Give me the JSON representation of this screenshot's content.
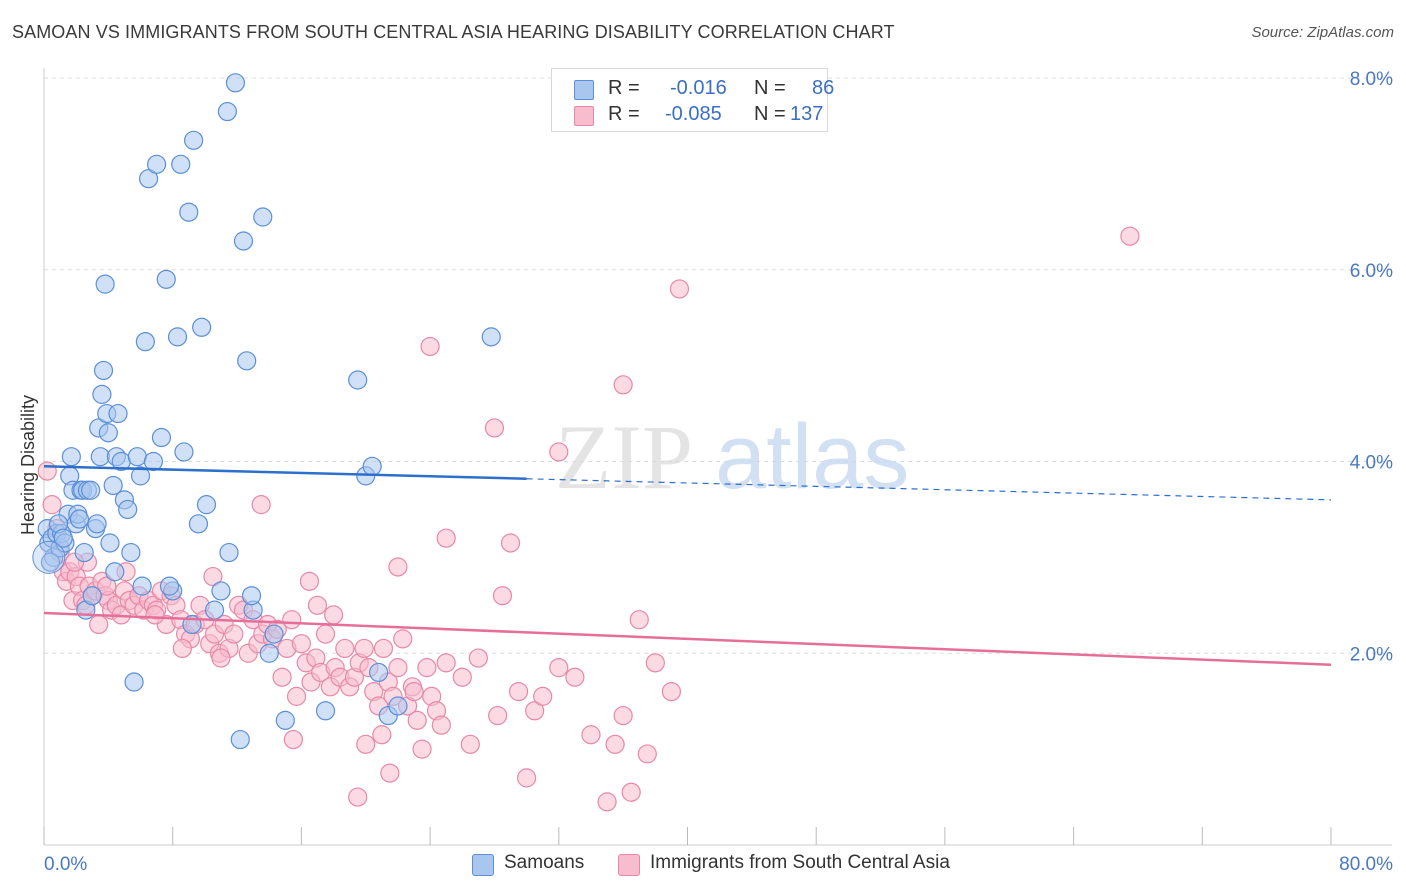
{
  "header": {
    "title": "SAMOAN VS IMMIGRANTS FROM SOUTH CENTRAL ASIA HEARING DISABILITY CORRELATION CHART",
    "source": "Source: ZipAtlas.com"
  },
  "watermark": {
    "zip": "ZIP",
    "atlas": "atlas"
  },
  "stats_legend": {
    "rows": [
      {
        "r_label": "R =",
        "r_value": "-0.016",
        "n_label": "N =",
        "n_value": "86"
      },
      {
        "r_label": "R =",
        "r_value": "-0.085",
        "n_label": "N =",
        "n_value": "137"
      }
    ]
  },
  "bottom_legend": {
    "items": [
      {
        "label": "Samoans"
      },
      {
        "label": "Immigrants from South Central Asia"
      }
    ]
  },
  "colors": {
    "samoans_fill": "#a9c6ef",
    "samoans_stroke": "#5b8fd8",
    "samoans_line": "#2d6fcc",
    "immigrants_fill": "#f7bccd",
    "immigrants_stroke": "#e888a8",
    "immigrants_line": "#e56f99",
    "axis_text": "#4a78c2",
    "grid": "#dddddd"
  },
  "chart_data": {
    "type": "scatter",
    "title": "SAMOAN VS IMMIGRANTS FROM SOUTH CENTRAL ASIA HEARING DISABILITY CORRELATION CHART",
    "xlabel": "",
    "ylabel": "Hearing Disability",
    "xlim": [
      0,
      80
    ],
    "ylim": [
      0,
      8
    ],
    "x_tick_labels": [
      "0.0%",
      "80.0%"
    ],
    "y_tick_labels": [
      "2.0%",
      "4.0%",
      "6.0%",
      "8.0%"
    ],
    "y_ticks": [
      2,
      4,
      6,
      8
    ],
    "grid": true,
    "legend_position": "bottom",
    "series": [
      {
        "name": "Samoans",
        "r": -0.016,
        "n": 86,
        "trend": {
          "x": [
            0,
            30
          ],
          "y": [
            3.95,
            3.82
          ],
          "dashed_to": [
            80,
            3.6
          ]
        },
        "points": [
          [
            0.2,
            3.3
          ],
          [
            0.3,
            3.15
          ],
          [
            0.5,
            3.2
          ],
          [
            0.6,
            3.0
          ],
          [
            0.8,
            3.25
          ],
          [
            1.0,
            3.1
          ],
          [
            1.1,
            3.25
          ],
          [
            1.3,
            3.15
          ],
          [
            1.5,
            3.45
          ],
          [
            1.6,
            3.85
          ],
          [
            1.7,
            4.05
          ],
          [
            1.8,
            3.7
          ],
          [
            2.0,
            3.35
          ],
          [
            2.1,
            3.45
          ],
          [
            2.3,
            3.7
          ],
          [
            2.4,
            3.7
          ],
          [
            2.5,
            3.05
          ],
          [
            2.6,
            2.45
          ],
          [
            2.7,
            3.7
          ],
          [
            2.9,
            3.7
          ],
          [
            3.0,
            2.6
          ],
          [
            3.2,
            3.3
          ],
          [
            3.3,
            3.35
          ],
          [
            3.4,
            4.35
          ],
          [
            3.5,
            4.05
          ],
          [
            3.6,
            4.7
          ],
          [
            3.7,
            4.95
          ],
          [
            3.8,
            5.85
          ],
          [
            3.9,
            4.5
          ],
          [
            4.0,
            4.3
          ],
          [
            4.1,
            3.15
          ],
          [
            4.3,
            3.75
          ],
          [
            4.5,
            4.05
          ],
          [
            4.6,
            4.5
          ],
          [
            4.8,
            4.0
          ],
          [
            5.0,
            3.6
          ],
          [
            5.2,
            3.5
          ],
          [
            5.4,
            3.05
          ],
          [
            5.6,
            1.7
          ],
          [
            5.8,
            4.05
          ],
          [
            6.0,
            3.85
          ],
          [
            6.3,
            5.25
          ],
          [
            6.5,
            6.95
          ],
          [
            6.8,
            4.0
          ],
          [
            7.0,
            7.1
          ],
          [
            7.3,
            4.25
          ],
          [
            7.6,
            5.9
          ],
          [
            8.0,
            2.65
          ],
          [
            8.3,
            5.3
          ],
          [
            8.5,
            7.1
          ],
          [
            8.7,
            4.1
          ],
          [
            9.0,
            6.6
          ],
          [
            9.3,
            7.35
          ],
          [
            9.6,
            3.35
          ],
          [
            9.8,
            5.4
          ],
          [
            10.1,
            3.55
          ],
          [
            10.6,
            2.45
          ],
          [
            11.0,
            2.65
          ],
          [
            11.4,
            7.65
          ],
          [
            11.9,
            7.95
          ],
          [
            11.5,
            3.05
          ],
          [
            12.2,
            1.1
          ],
          [
            12.4,
            6.3
          ],
          [
            12.6,
            5.05
          ],
          [
            13.0,
            2.45
          ],
          [
            13.6,
            6.55
          ],
          [
            14.0,
            2.0
          ],
          [
            14.3,
            2.2
          ],
          [
            15.0,
            1.3
          ],
          [
            17.5,
            1.4
          ],
          [
            19.5,
            4.85
          ],
          [
            20.0,
            3.85
          ],
          [
            20.4,
            3.95
          ],
          [
            20.8,
            1.8
          ],
          [
            21.4,
            1.35
          ],
          [
            22.0,
            1.45
          ],
          [
            27.8,
            5.3
          ],
          [
            0.4,
            2.95
          ],
          [
            0.9,
            3.35
          ],
          [
            1.2,
            3.2
          ],
          [
            2.2,
            3.4
          ],
          [
            4.4,
            2.85
          ],
          [
            6.1,
            2.7
          ],
          [
            7.8,
            2.7
          ],
          [
            9.2,
            2.3
          ],
          [
            12.9,
            2.6
          ]
        ]
      },
      {
        "name": "Immigrants from South Central Asia",
        "r": -0.085,
        "n": 137,
        "trend": {
          "x": [
            0,
            80
          ],
          "y": [
            2.42,
            1.88
          ]
        },
        "points": [
          [
            0.2,
            3.9
          ],
          [
            0.5,
            3.55
          ],
          [
            0.8,
            3.3
          ],
          [
            1.0,
            3.05
          ],
          [
            1.2,
            2.85
          ],
          [
            1.4,
            2.75
          ],
          [
            1.6,
            2.85
          ],
          [
            1.8,
            2.55
          ],
          [
            2.0,
            2.8
          ],
          [
            2.2,
            2.7
          ],
          [
            2.4,
            2.55
          ],
          [
            2.6,
            2.5
          ],
          [
            2.8,
            2.7
          ],
          [
            3.0,
            2.6
          ],
          [
            3.2,
            2.65
          ],
          [
            3.4,
            2.3
          ],
          [
            3.6,
            2.75
          ],
          [
            3.8,
            2.6
          ],
          [
            4.0,
            2.55
          ],
          [
            4.2,
            2.45
          ],
          [
            4.5,
            2.5
          ],
          [
            4.8,
            2.4
          ],
          [
            5.0,
            2.65
          ],
          [
            5.3,
            2.55
          ],
          [
            5.6,
            2.5
          ],
          [
            5.9,
            2.6
          ],
          [
            6.2,
            2.45
          ],
          [
            6.5,
            2.55
          ],
          [
            6.8,
            2.5
          ],
          [
            7.0,
            2.45
          ],
          [
            7.3,
            2.65
          ],
          [
            7.6,
            2.3
          ],
          [
            7.9,
            2.6
          ],
          [
            8.2,
            2.5
          ],
          [
            8.5,
            2.35
          ],
          [
            8.8,
            2.2
          ],
          [
            9.1,
            2.15
          ],
          [
            9.4,
            2.3
          ],
          [
            9.7,
            2.5
          ],
          [
            10.0,
            2.35
          ],
          [
            10.3,
            2.1
          ],
          [
            10.6,
            2.2
          ],
          [
            10.9,
            2.0
          ],
          [
            11.2,
            2.3
          ],
          [
            11.5,
            2.05
          ],
          [
            11.8,
            2.2
          ],
          [
            12.1,
            2.5
          ],
          [
            12.4,
            2.45
          ],
          [
            12.7,
            2.0
          ],
          [
            13.0,
            2.35
          ],
          [
            13.3,
            2.1
          ],
          [
            13.6,
            2.2
          ],
          [
            13.9,
            2.3
          ],
          [
            14.2,
            2.15
          ],
          [
            14.5,
            2.25
          ],
          [
            14.8,
            1.75
          ],
          [
            15.1,
            2.05
          ],
          [
            15.4,
            2.35
          ],
          [
            15.7,
            1.55
          ],
          [
            16.0,
            2.1
          ],
          [
            16.3,
            1.9
          ],
          [
            16.6,
            1.7
          ],
          [
            16.9,
            1.95
          ],
          [
            17.2,
            1.8
          ],
          [
            17.5,
            2.2
          ],
          [
            17.8,
            1.65
          ],
          [
            18.1,
            1.85
          ],
          [
            18.4,
            1.75
          ],
          [
            18.7,
            2.05
          ],
          [
            19.0,
            1.65
          ],
          [
            19.3,
            1.75
          ],
          [
            19.6,
            1.9
          ],
          [
            19.9,
            2.05
          ],
          [
            20.2,
            1.85
          ],
          [
            20.5,
            1.6
          ],
          [
            20.8,
            1.45
          ],
          [
            21.1,
            2.05
          ],
          [
            21.4,
            1.7
          ],
          [
            21.7,
            1.55
          ],
          [
            22.0,
            1.85
          ],
          [
            22.3,
            2.15
          ],
          [
            22.6,
            1.45
          ],
          [
            22.9,
            1.65
          ],
          [
            23.2,
            1.3
          ],
          [
            23.5,
            1.0
          ],
          [
            23.8,
            1.85
          ],
          [
            24.1,
            1.55
          ],
          [
            24.4,
            1.4
          ],
          [
            24.7,
            1.25
          ],
          [
            25.0,
            1.9
          ],
          [
            26.0,
            1.75
          ],
          [
            27.0,
            1.95
          ],
          [
            28.0,
            4.35
          ],
          [
            28.5,
            2.6
          ],
          [
            29.0,
            3.15
          ],
          [
            29.5,
            1.6
          ],
          [
            30.0,
            0.7
          ],
          [
            30.5,
            1.4
          ],
          [
            31.0,
            1.55
          ],
          [
            32.0,
            1.85
          ],
          [
            33.0,
            1.75
          ],
          [
            34.0,
            1.15
          ],
          [
            35.0,
            0.45
          ],
          [
            35.5,
            1.05
          ],
          [
            36.0,
            1.35
          ],
          [
            36.5,
            0.55
          ],
          [
            37.0,
            2.35
          ],
          [
            37.5,
            0.95
          ],
          [
            38.0,
            1.9
          ],
          [
            39.0,
            1.6
          ],
          [
            24.0,
            5.2
          ],
          [
            25.0,
            3.2
          ],
          [
            32.0,
            4.1
          ],
          [
            36.0,
            4.8
          ],
          [
            39.5,
            5.8
          ],
          [
            67.5,
            6.35
          ],
          [
            8.6,
            2.05
          ],
          [
            10.5,
            2.8
          ],
          [
            13.5,
            3.55
          ],
          [
            17.0,
            2.5
          ],
          [
            19.5,
            0.5
          ],
          [
            21.0,
            1.15
          ],
          [
            22.0,
            2.9
          ],
          [
            26.5,
            1.05
          ],
          [
            28.2,
            1.35
          ],
          [
            11.0,
            1.95
          ],
          [
            6.9,
            2.4
          ],
          [
            5.1,
            2.85
          ],
          [
            3.9,
            2.7
          ],
          [
            2.7,
            2.95
          ],
          [
            15.5,
            1.1
          ],
          [
            16.5,
            2.75
          ],
          [
            18.0,
            2.4
          ],
          [
            20.0,
            1.05
          ],
          [
            21.5,
            0.75
          ],
          [
            23.0,
            1.6
          ],
          [
            1.9,
            2.95
          ]
        ]
      }
    ]
  }
}
